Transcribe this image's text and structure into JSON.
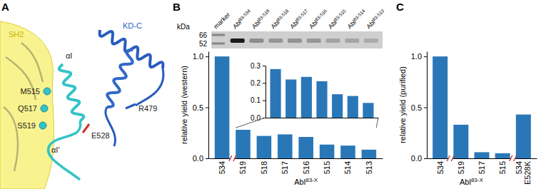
{
  "panel_labels": [
    "A",
    "B",
    "C"
  ],
  "structure": {
    "labels": [
      "SH2",
      "αI",
      "KD-C",
      "M515",
      "Q517",
      "S519",
      "R479",
      "E528",
      "αI'"
    ]
  },
  "blot": {
    "units": "kDa",
    "markers": [
      66,
      52
    ],
    "lanes": [
      {
        "text": "marker"
      },
      {
        "text": "Abl",
        "sup": "83-534"
      },
      {
        "text": "Abl",
        "sup": "83-519"
      },
      {
        "text": "Abl",
        "sup": "83-518"
      },
      {
        "text": "Abl",
        "sup": "83-517"
      },
      {
        "text": "Abl",
        "sup": "83-516"
      },
      {
        "text": "Abl",
        "sup": "83-515"
      },
      {
        "text": "Abl",
        "sup": "83-514"
      },
      {
        "text": "Abl",
        "sup": "83-513"
      }
    ]
  },
  "chart_data": [
    {
      "type": "bar",
      "ylabel": "relative yield (western)",
      "xlabel": {
        "text": "Abl",
        "sup": "83-X"
      },
      "categories": [
        "534",
        "519",
        "518",
        "517",
        "516",
        "515",
        "514",
        "513"
      ],
      "values": [
        1.0,
        0.28,
        0.22,
        0.235,
        0.21,
        0.135,
        0.125,
        0.085
      ],
      "color": "#2a77b8",
      "ylim": [
        0,
        1.05
      ],
      "yticks": [
        {
          "value": 0,
          "label": "0.0"
        },
        {
          "value": 0.5,
          "label": "0.5"
        },
        {
          "value": 1,
          "label": "1.0"
        }
      ]
    },
    {
      "type": "bar",
      "categories": [
        null,
        null,
        null,
        null,
        null,
        null,
        null
      ],
      "values": [
        0.28,
        0.22,
        0.235,
        0.21,
        0.135,
        0.125,
        0.085
      ],
      "color": "#2a77b8",
      "ylim": [
        0,
        0.3
      ],
      "yticks": [
        {
          "value": 0,
          "label": "0.0"
        },
        {
          "value": 0.1,
          "label": "0.1"
        },
        {
          "value": 0.2,
          "label": "0.2"
        },
        {
          "value": 0.3,
          "label": "0.3"
        }
      ],
      "tick_labels": "y"
    },
    {
      "type": "bar",
      "ylabel": "relative yield (purified)",
      "xlabel": {
        "text": "Abl",
        "sup": "83-X"
      },
      "categories": [
        "534",
        "519",
        "517",
        "515",
        "534 E528K"
      ],
      "values": [
        1.0,
        0.33,
        0.06,
        0.05,
        0.43
      ],
      "color": "#2a77b8",
      "ylim": [
        0,
        1.05
      ],
      "yticks": [
        {
          "value": 0,
          "label": "0.0"
        },
        {
          "value": 0.5,
          "label": "0.5"
        },
        {
          "value": 1,
          "label": "1.0"
        }
      ]
    }
  ]
}
